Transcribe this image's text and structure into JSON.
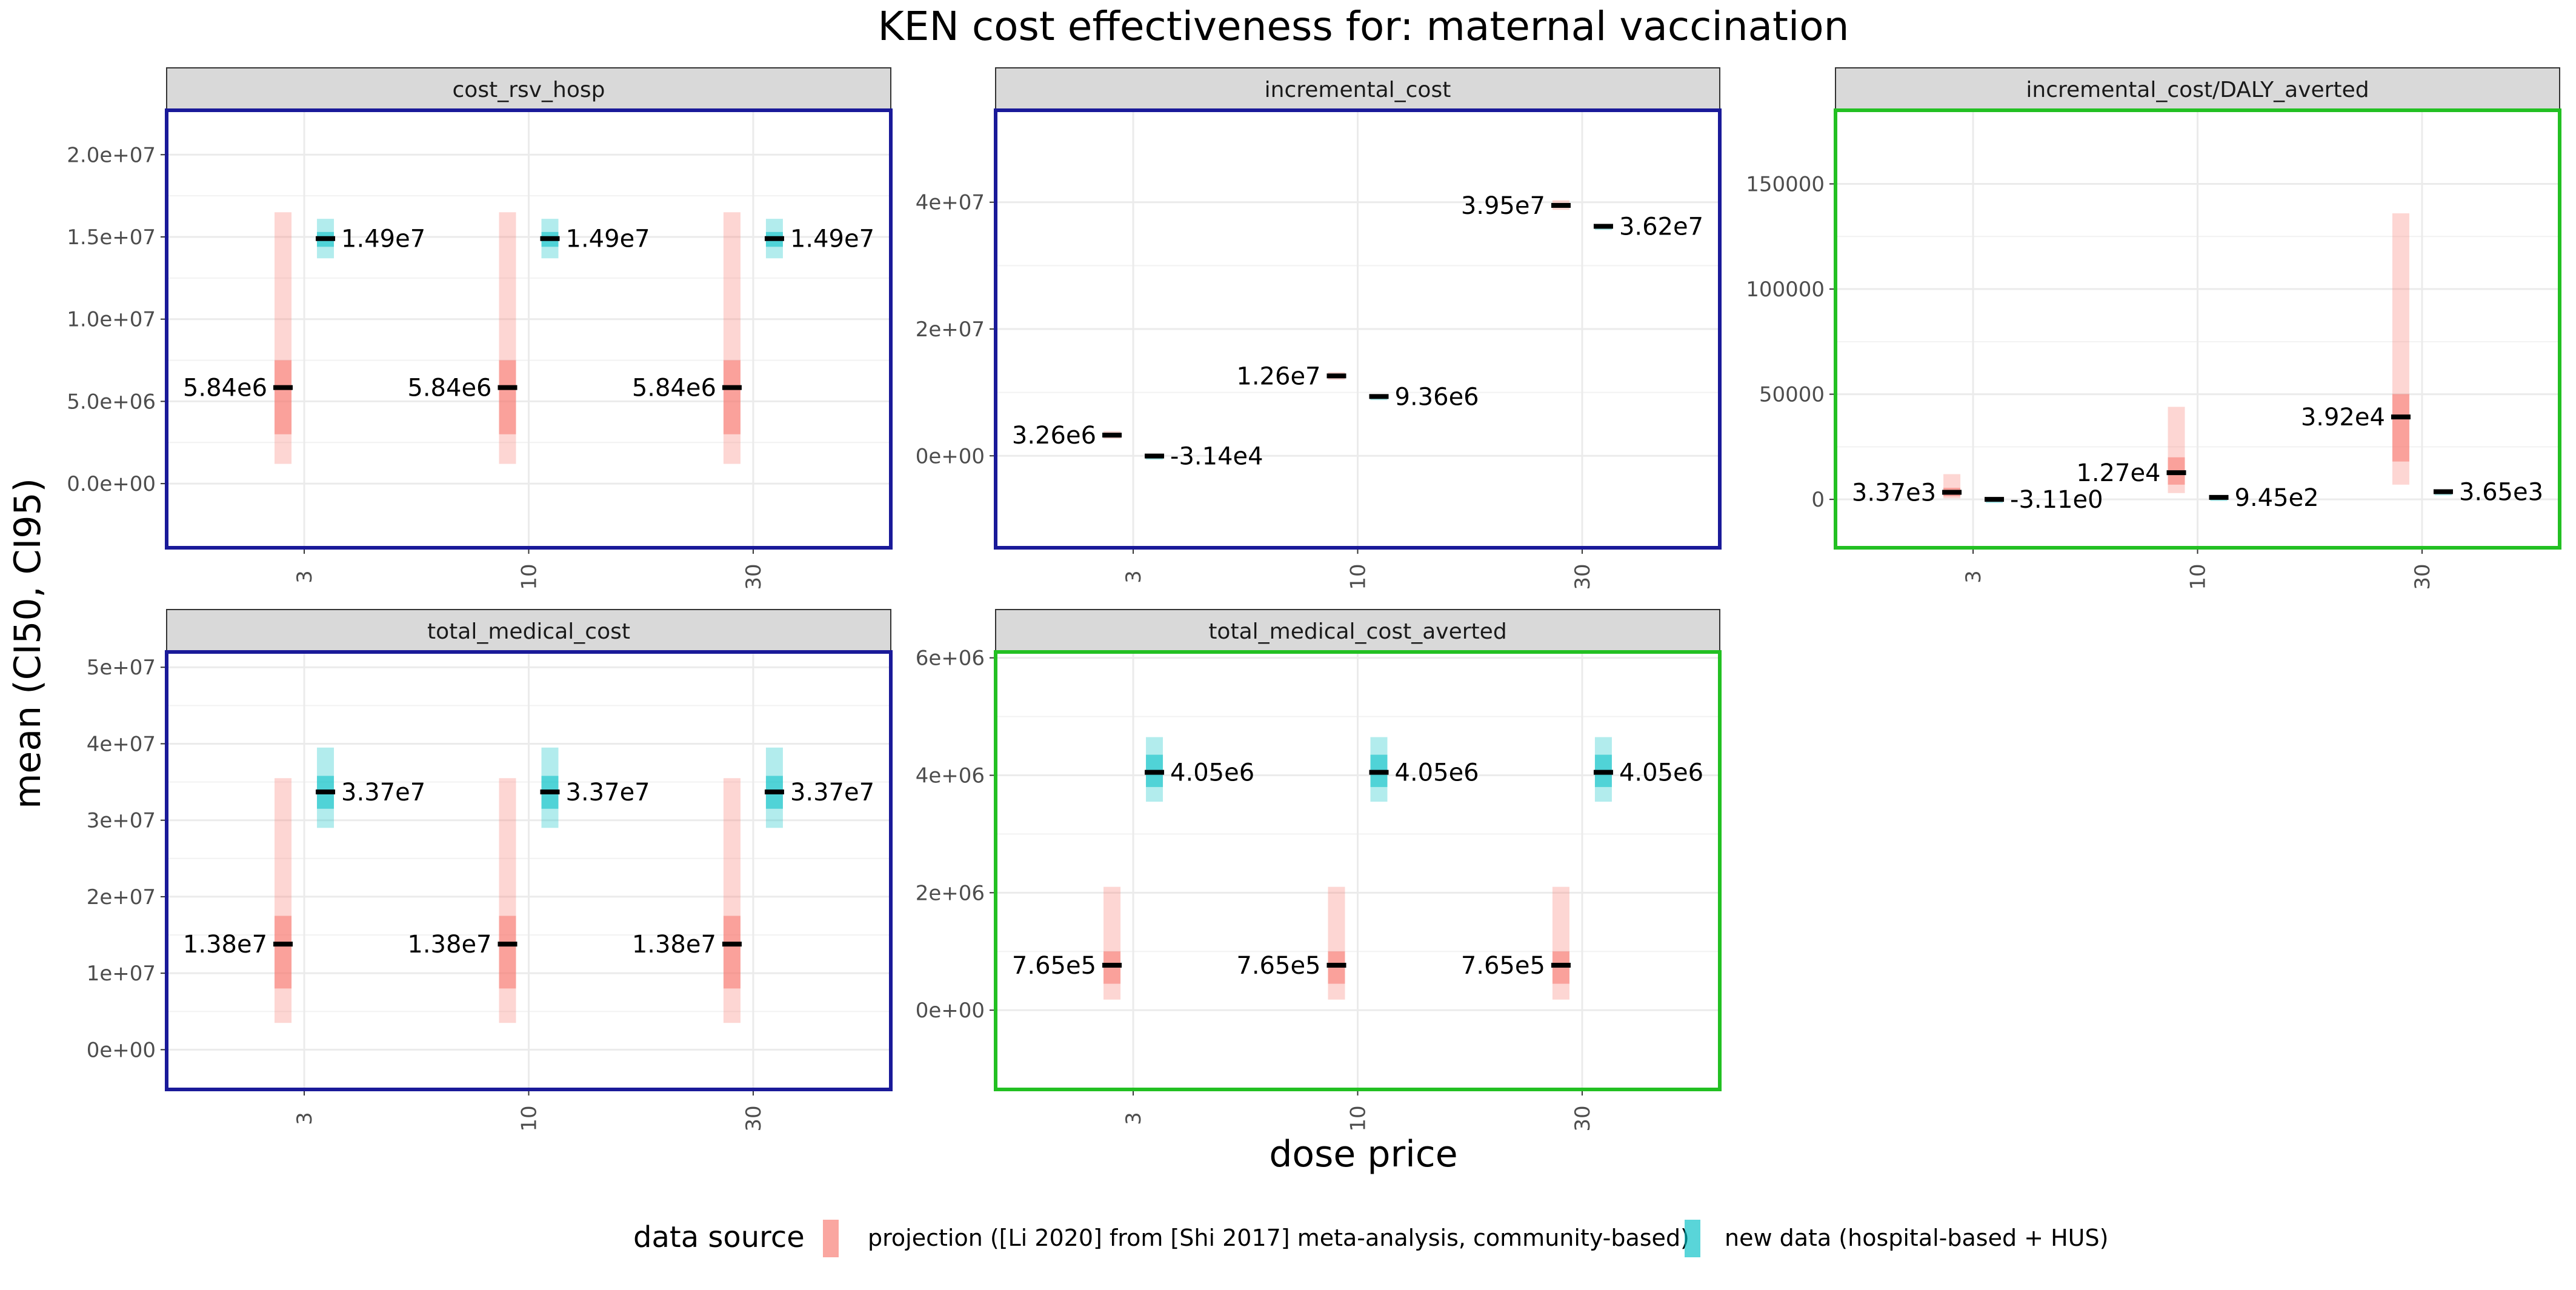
{
  "title": "KEN cost effectiveness for: maternal vaccination",
  "xlabel": "dose price",
  "ylabel": "mean (CI50, CI95)",
  "legend": {
    "title": "data source",
    "items": [
      {
        "key": "projection",
        "label": "projection ([Li 2020] from [Shi 2017] meta-analysis, community-based)",
        "color": "#f8766d"
      },
      {
        "key": "newdata",
        "label": "new data (hospital-based + HUS)",
        "color": "#00bfc4"
      }
    ]
  },
  "colors": {
    "projection": "#f8766d",
    "newdata": "#00bfc4",
    "border_blue": "#1a1a99",
    "border_green": "#22c022",
    "strip_bg": "#d9d9d9",
    "grid": "#ebebeb",
    "median": "#000000"
  },
  "chart_data": [
    {
      "type": "errorbar",
      "panel": "cost_rsv_hosp",
      "border": "blue",
      "categories": [
        "3",
        "10",
        "30"
      ],
      "ylim": [
        -3900000,
        22700000
      ],
      "y_ticks": [
        0,
        5000000,
        10000000,
        15000000,
        20000000
      ],
      "y_tick_labels": [
        "0.0e+00",
        "5.0e+06",
        "1.0e+07",
        "1.5e+07",
        "2.0e+07"
      ],
      "series": [
        {
          "source": "projection",
          "mean": [
            5840000,
            5840000,
            5840000
          ],
          "ci50": [
            [
              3000000,
              7500000
            ],
            [
              3000000,
              7500000
            ],
            [
              3000000,
              7500000
            ]
          ],
          "ci95": [
            [
              1200000,
              16500000
            ],
            [
              1200000,
              16500000
            ],
            [
              1200000,
              16500000
            ]
          ],
          "labels": [
            "5.84e6",
            "5.84e6",
            "5.84e6"
          ]
        },
        {
          "source": "newdata",
          "mean": [
            14900000,
            14900000,
            14900000
          ],
          "ci50": [
            [
              14400000,
              15300000
            ],
            [
              14400000,
              15300000
            ],
            [
              14400000,
              15300000
            ]
          ],
          "ci95": [
            [
              13700000,
              16100000
            ],
            [
              13700000,
              16100000
            ],
            [
              13700000,
              16100000
            ]
          ],
          "labels": [
            "1.49e7",
            "1.49e7",
            "1.49e7"
          ]
        }
      ]
    },
    {
      "type": "errorbar",
      "panel": "incremental_cost",
      "border": "blue",
      "categories": [
        "3",
        "10",
        "30"
      ],
      "ylim": [
        -14500000,
        54500000
      ],
      "y_ticks": [
        0,
        20000000,
        40000000
      ],
      "y_tick_labels": [
        "0e+00",
        "2e+07",
        "4e+07"
      ],
      "series": [
        {
          "source": "projection",
          "mean": [
            3260000,
            12600000,
            39500000
          ],
          "ci50": [
            [
              3000000,
              3500000
            ],
            [
              12300000,
              12900000
            ],
            [
              39200000,
              39800000
            ]
          ],
          "ci95": [
            [
              2700000,
              3900000
            ],
            [
              12000000,
              13200000
            ],
            [
              38800000,
              40300000
            ]
          ],
          "labels": [
            "3.26e6",
            "1.26e7",
            "3.95e7"
          ]
        },
        {
          "source": "newdata",
          "mean": [
            -31400,
            9360000,
            36200000
          ],
          "ci50": [
            [
              -31400,
              -31400
            ],
            [
              9360000,
              9360000
            ],
            [
              36200000,
              36200000
            ]
          ],
          "ci95": [
            [
              -31400,
              -31400
            ],
            [
              9360000,
              9360000
            ],
            [
              36200000,
              36200000
            ]
          ],
          "labels": [
            "-3.14e4",
            "9.36e6",
            "3.62e7"
          ]
        }
      ]
    },
    {
      "type": "errorbar",
      "panel": "incremental_cost/DALY_averted",
      "border": "green",
      "categories": [
        "3",
        "10",
        "30"
      ],
      "ylim": [
        -23000000,
        185000
      ],
      "ylim_note": "",
      "y_ticks": [
        0,
        50000,
        100000,
        150000
      ],
      "y_tick_labels": [
        "0",
        "50000",
        "100000",
        "150000"
      ],
      "series": [
        {
          "source": "projection",
          "mean": [
            3370,
            12700,
            39200
          ],
          "ci50": [
            [
              1500,
              5500
            ],
            [
              7000,
              20000
            ],
            [
              18000,
              50000
            ]
          ],
          "ci95": [
            [
              500,
              12000
            ],
            [
              3000,
              44000
            ],
            [
              7000,
              136000
            ]
          ],
          "labels": [
            "3.37e3",
            "1.27e4",
            "3.92e4"
          ]
        },
        {
          "source": "newdata",
          "mean": [
            -3.11,
            945,
            3650
          ],
          "ci50": [
            [
              -3.11,
              -3.11
            ],
            [
              945,
              945
            ],
            [
              3650,
              3650
            ]
          ],
          "ci95": [
            [
              -3.11,
              -3.11
            ],
            [
              945,
              945
            ],
            [
              3650,
              3650
            ]
          ],
          "labels": [
            "-3.11e0",
            "9.45e2",
            "3.65e3"
          ]
        }
      ]
    },
    {
      "type": "errorbar",
      "panel": "total_medical_cost",
      "border": "blue",
      "categories": [
        "3",
        "10",
        "30"
      ],
      "ylim": [
        -5200000,
        52000000
      ],
      "y_ticks": [
        0,
        10000000,
        20000000,
        30000000,
        40000000,
        50000000
      ],
      "y_tick_labels": [
        "0e+00",
        "1e+07",
        "2e+07",
        "3e+07",
        "4e+07",
        "5e+07"
      ],
      "series": [
        {
          "source": "projection",
          "mean": [
            13800000,
            13800000,
            13800000
          ],
          "ci50": [
            [
              8000000,
              17500000
            ],
            [
              8000000,
              17500000
            ],
            [
              8000000,
              17500000
            ]
          ],
          "ci95": [
            [
              3500000,
              35500000
            ],
            [
              3500000,
              35500000
            ],
            [
              3500000,
              35500000
            ]
          ],
          "labels": [
            "1.38e7",
            "1.38e7",
            "1.38e7"
          ]
        },
        {
          "source": "newdata",
          "mean": [
            33700000,
            33700000,
            33700000
          ],
          "ci50": [
            [
              31500000,
              35800000
            ],
            [
              31500000,
              35800000
            ],
            [
              31500000,
              35800000
            ]
          ],
          "ci95": [
            [
              29000000,
              39500000
            ],
            [
              29000000,
              39500000
            ],
            [
              29000000,
              39500000
            ]
          ],
          "labels": [
            "3.37e7",
            "3.37e7",
            "3.37e7"
          ]
        }
      ]
    },
    {
      "type": "errorbar",
      "panel": "total_medical_cost_averted",
      "border": "green",
      "categories": [
        "3",
        "10",
        "30"
      ],
      "ylim": [
        -1350000,
        6100000
      ],
      "y_ticks": [
        0,
        2000000,
        4000000,
        6000000
      ],
      "y_tick_labels": [
        "0e+00",
        "2e+06",
        "4e+06",
        "6e+06"
      ],
      "series": [
        {
          "source": "projection",
          "mean": [
            765000,
            765000,
            765000
          ],
          "ci50": [
            [
              450000,
              1000000
            ],
            [
              450000,
              1000000
            ],
            [
              450000,
              1000000
            ]
          ],
          "ci95": [
            [
              180000,
              2100000
            ],
            [
              180000,
              2100000
            ],
            [
              180000,
              2100000
            ]
          ],
          "labels": [
            "7.65e5",
            "7.65e5",
            "7.65e5"
          ]
        },
        {
          "source": "newdata",
          "mean": [
            4050000,
            4050000,
            4050000
          ],
          "ci50": [
            [
              3800000,
              4350000
            ],
            [
              3800000,
              4350000
            ],
            [
              3800000,
              4350000
            ]
          ],
          "ci95": [
            [
              3550000,
              4650000
            ],
            [
              3550000,
              4650000
            ],
            [
              3550000,
              4650000
            ]
          ],
          "labels": [
            "4.05e6",
            "4.05e6",
            "4.05e6"
          ]
        }
      ]
    }
  ]
}
